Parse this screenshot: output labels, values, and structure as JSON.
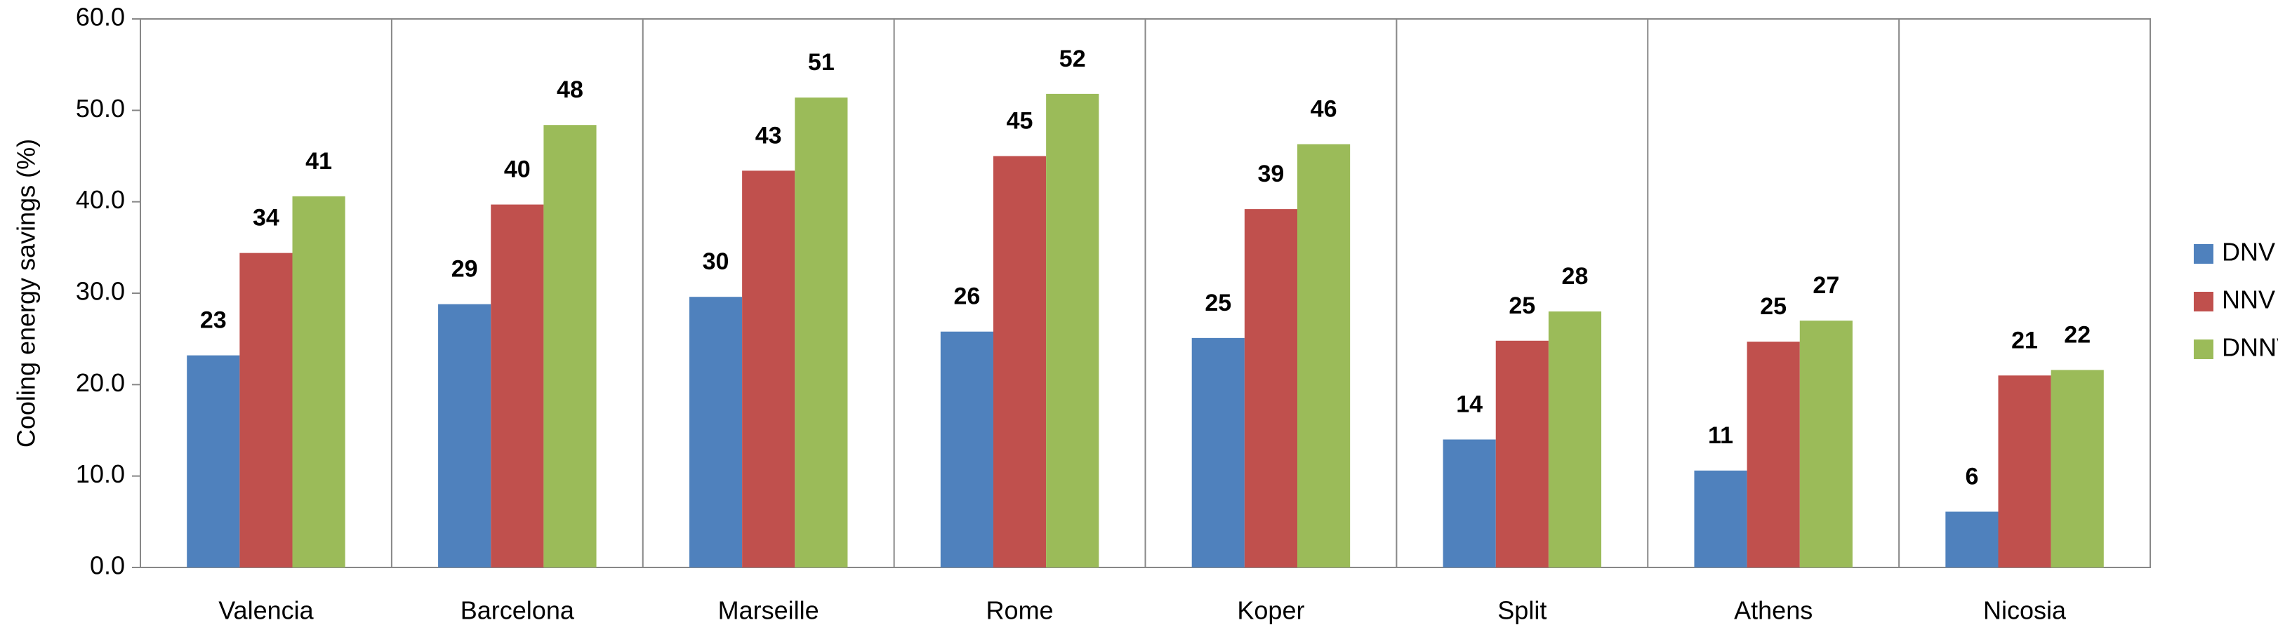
{
  "chart_data": {
    "type": "bar",
    "y_label": "Cooling energy savings  (%)",
    "categories": [
      "Valencia",
      "Barcelona",
      "Marseille",
      "Rome",
      "Koper",
      "Split",
      "Athens",
      "Nicosia"
    ],
    "series": [
      {
        "name": "DNV",
        "color": "#4f81bd",
        "values": [
          23.2,
          28.8,
          29.6,
          25.8,
          25.1,
          14.0,
          10.6,
          6.1
        ],
        "value_labels": [
          "23",
          "29",
          "30",
          "26",
          "25",
          "14",
          "11",
          "6"
        ]
      },
      {
        "name": "NNV",
        "color": "#c0504d",
        "values": [
          34.4,
          39.7,
          43.4,
          45.0,
          39.2,
          24.8,
          24.7,
          21.0
        ],
        "value_labels": [
          "34",
          "40",
          "43",
          "45",
          "39",
          "25",
          "25",
          "21"
        ]
      },
      {
        "name": "DNNV",
        "color": "#9bbb59",
        "values": [
          40.6,
          48.4,
          51.4,
          51.8,
          46.3,
          28.0,
          27.0,
          21.6
        ],
        "value_labels": [
          "41",
          "48",
          "51",
          "52",
          "46",
          "28",
          "27",
          "22"
        ]
      }
    ],
    "ylim": [
      0,
      60
    ],
    "yticks": [
      {
        "value": 0,
        "label": "0.0"
      },
      {
        "value": 10,
        "label": "10.0"
      },
      {
        "value": 20,
        "label": "20.0"
      },
      {
        "value": 30,
        "label": "30.0"
      },
      {
        "value": 40,
        "label": "40.0"
      },
      {
        "value": 50,
        "label": "50.0"
      },
      {
        "value": 60,
        "label": "60.0"
      }
    ],
    "legend": "right"
  }
}
